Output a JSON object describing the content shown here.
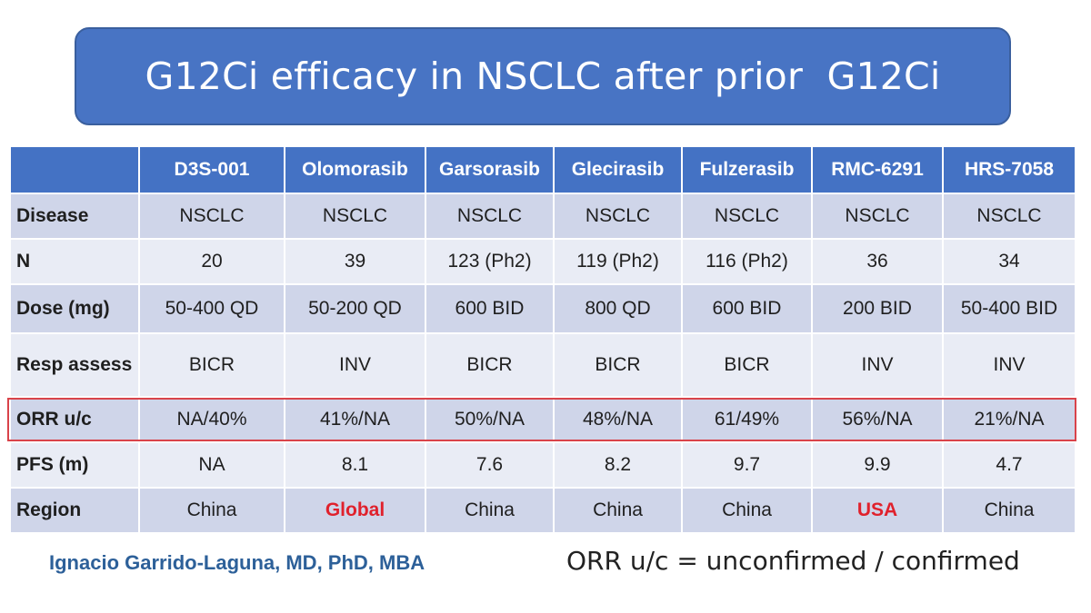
{
  "title": "G12Ci efficacy in NSCLC after prior  G12Ci",
  "table": {
    "columns": [
      "D3S-001",
      "Olomorasib",
      "Garsorasib",
      "Glecirasib",
      "Fulzerasib",
      "RMC-6291",
      "HRS-7058"
    ],
    "rows": [
      {
        "label": "Disease",
        "cells": [
          "NSCLC",
          "NSCLC",
          "NSCLC",
          "NSCLC",
          "NSCLC",
          "NSCLC",
          "NSCLC"
        ]
      },
      {
        "label": "N",
        "cells": [
          "20",
          "39",
          "123 (Ph2)",
          "119 (Ph2)",
          "116 (Ph2)",
          "36",
          "34"
        ]
      },
      {
        "label": "Dose (mg)",
        "cells": [
          "50-400 QD",
          "50-200 QD",
          "600 BID",
          "800 QD",
          "600 BID",
          "200 BID",
          "50-400 BID"
        ]
      },
      {
        "label": "Resp assess",
        "cells": [
          "BICR",
          "INV",
          "BICR",
          "BICR",
          "BICR",
          "INV",
          "INV"
        ]
      },
      {
        "label": "ORR u/c",
        "cells": [
          "NA/40%",
          "41%/NA",
          "50%/NA",
          "48%/NA",
          "61/49%",
          "56%/NA",
          "21%/NA"
        ]
      },
      {
        "label": "PFS (m)",
        "cells": [
          "NA",
          "8.1",
          "7.6",
          "8.2",
          "9.7",
          "9.9",
          "4.7"
        ]
      },
      {
        "label": "Region",
        "cells": [
          "China",
          "Global",
          "China",
          "China",
          "China",
          "USA",
          "China"
        ]
      }
    ]
  },
  "colors": {
    "title_bg": "#4874c4",
    "header_bg": "#4472c4",
    "row_odd": "#cfd5e9",
    "row_even": "#e9ecf5",
    "highlight_border": "#d9434a",
    "emphasis_text": "#e0212c",
    "author_text": "#2d6099"
  },
  "author": "Ignacio Garrido-Laguna, MD, PhD, MBA",
  "footnote": "ORR u/c = unconfirmed / confirmed"
}
